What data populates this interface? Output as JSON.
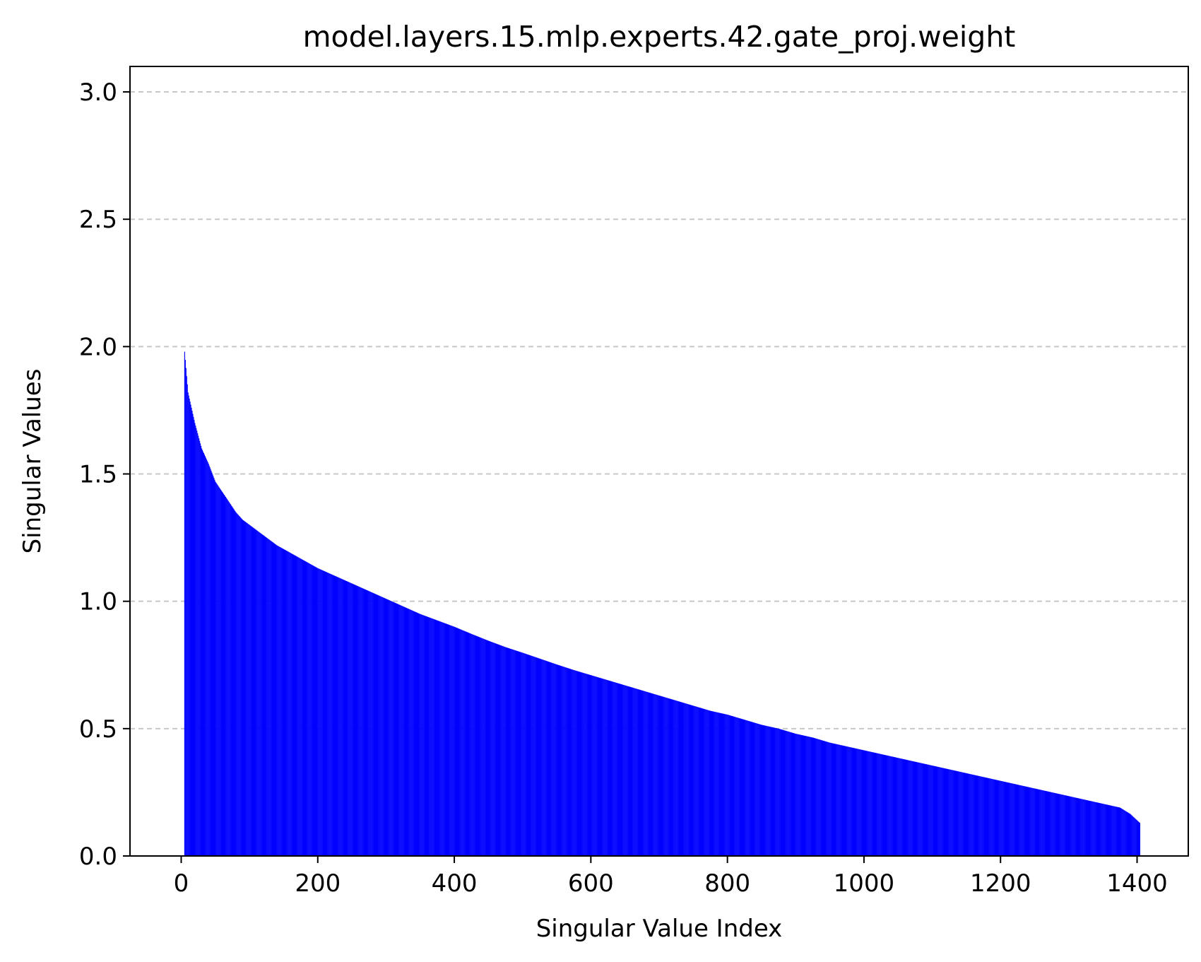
{
  "chart_data": {
    "type": "bar",
    "title": "model.layers.15.mlp.experts.42.gate_proj.weight",
    "xlabel": "Singular Value Index",
    "ylabel": "Singular Values",
    "xlim": [
      -75,
      1475
    ],
    "ylim": [
      0,
      3.1
    ],
    "xticks": [
      0,
      200,
      400,
      600,
      800,
      1000,
      1200,
      1400
    ],
    "xtick_labels": [
      "0",
      "200",
      "400",
      "600",
      "800",
      "1000",
      "1200",
      "1400"
    ],
    "yticks": [
      0.0,
      0.5,
      1.0,
      1.5,
      2.0,
      2.5,
      3.0
    ],
    "ytick_labels": [
      "0.0",
      "0.5",
      "1.0",
      "1.5",
      "2.0",
      "2.5",
      "3.0"
    ],
    "grid": "y-dashed",
    "bar_color": "#0000ff",
    "bar_width": 1.0,
    "x_start": 5,
    "x_end": 1404,
    "series": [
      {
        "x": [
          5,
          10,
          20,
          30,
          40,
          50,
          60,
          70,
          80,
          90,
          100,
          120,
          140,
          160,
          180,
          200,
          225,
          250,
          275,
          300,
          325,
          350,
          375,
          400,
          425,
          450,
          475,
          500,
          525,
          550,
          575,
          600,
          625,
          650,
          675,
          700,
          725,
          750,
          775,
          800,
          825,
          850,
          875,
          900,
          925,
          950,
          975,
          1000,
          1025,
          1050,
          1075,
          1100,
          1125,
          1150,
          1175,
          1200,
          1225,
          1250,
          1275,
          1300,
          1325,
          1350,
          1375,
          1390,
          1404
        ],
        "values": [
          1.98,
          1.82,
          1.7,
          1.6,
          1.54,
          1.47,
          1.43,
          1.39,
          1.35,
          1.32,
          1.3,
          1.26,
          1.22,
          1.19,
          1.16,
          1.13,
          1.1,
          1.07,
          1.04,
          1.01,
          0.98,
          0.95,
          0.925,
          0.9,
          0.872,
          0.845,
          0.82,
          0.798,
          0.775,
          0.752,
          0.73,
          0.71,
          0.69,
          0.67,
          0.65,
          0.63,
          0.61,
          0.59,
          0.57,
          0.555,
          0.535,
          0.515,
          0.5,
          0.48,
          0.465,
          0.445,
          0.43,
          0.415,
          0.4,
          0.385,
          0.37,
          0.355,
          0.34,
          0.325,
          0.31,
          0.295,
          0.28,
          0.265,
          0.25,
          0.235,
          0.22,
          0.205,
          0.19,
          0.165,
          0.13
        ]
      }
    ]
  }
}
